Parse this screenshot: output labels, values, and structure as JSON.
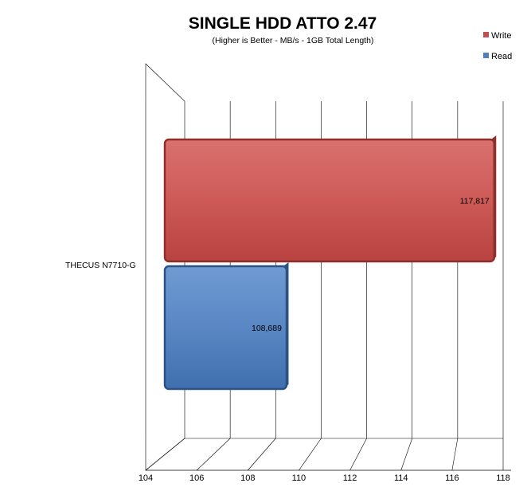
{
  "chart_data": {
    "type": "bar",
    "orientation": "horizontal",
    "title": "SINGLE HDD ATTO 2.47",
    "subtitle": "(Higher is Better - MB/s - 1GB Total Length)",
    "categories": [
      "THECUS N7710-G"
    ],
    "series": [
      {
        "name": "Write",
        "values": [
          117.817
        ],
        "label": "117,817",
        "color": "#c0504d"
      },
      {
        "name": "Read",
        "values": [
          108.689
        ],
        "label": "108,689",
        "color": "#4f81bd"
      }
    ],
    "xlim": [
      104,
      118
    ],
    "xticks": [
      "104",
      "106",
      "108",
      "110",
      "112",
      "114",
      "116",
      "118"
    ],
    "grid": true,
    "legend": {
      "position": "top-right",
      "items": [
        "Write",
        "Read"
      ]
    },
    "xlabel": "",
    "ylabel": ""
  }
}
